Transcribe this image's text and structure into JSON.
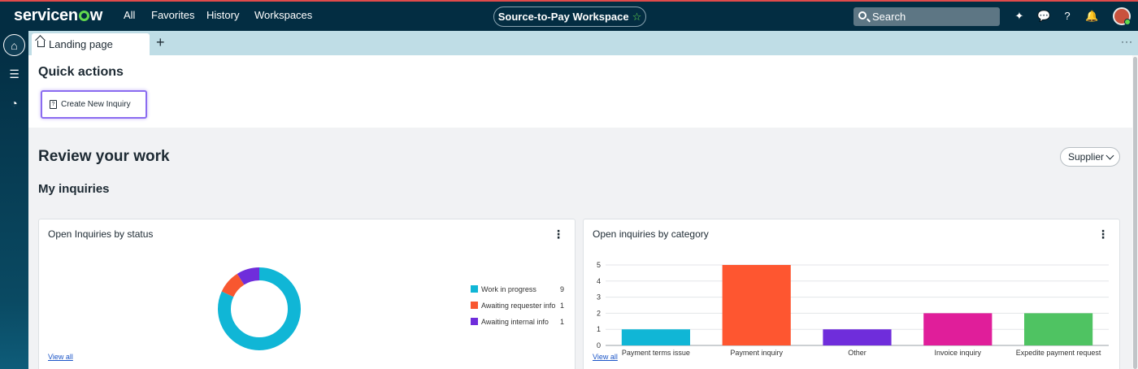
{
  "nav": {
    "logo": "servicenow",
    "items": [
      "All",
      "Favorites",
      "History",
      "Workspaces"
    ],
    "workspace": "Source-to-Pay Workspace",
    "search_placeholder": "Search"
  },
  "tabs": {
    "active": "Landing page",
    "add": "+",
    "more": "···"
  },
  "quick_actions": {
    "title": "Quick actions",
    "create_inquiry": "Create New Inquiry"
  },
  "review": {
    "title": "Review your work",
    "filter": "Supplier",
    "subtitle": "My inquiries"
  },
  "status_card": {
    "title": "Open Inquiries by status",
    "view_all": "View all",
    "chart_data": {
      "type": "pie",
      "categories": [
        "Work in progress",
        "Awaiting requester info",
        "Awaiting internal info"
      ],
      "values": [
        9,
        1,
        1
      ],
      "colors": [
        "#10b6d6",
        "#f85730",
        "#6f2ddb"
      ],
      "legend": "right"
    }
  },
  "category_card": {
    "title": "Open inquiries by category",
    "view_all": "View all",
    "chart_data": {
      "type": "bar",
      "categories": [
        "Payment terms issue",
        "Payment inquiry",
        "Other",
        "Invoice inquiry",
        "Expedite payment request"
      ],
      "values": [
        1,
        5,
        1,
        2,
        2
      ],
      "colors": [
        "#10b6d6",
        "#fe5630",
        "#6f2ddb",
        "#e01e9a",
        "#4fc362"
      ],
      "ylim": [
        0,
        5
      ],
      "yticks": [
        "0",
        "1",
        "2",
        "3",
        "4",
        "5"
      ],
      "grid": true
    }
  }
}
